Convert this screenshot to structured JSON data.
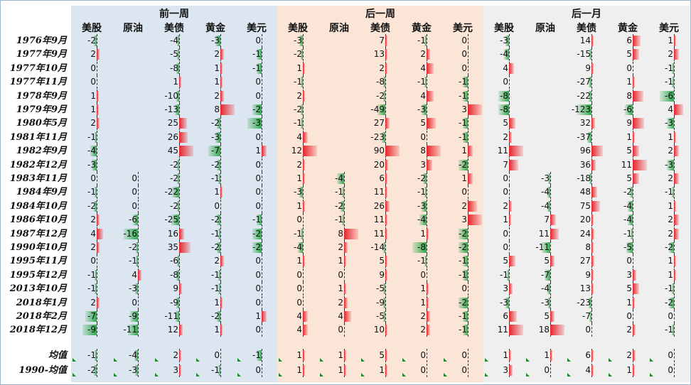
{
  "chart_data": {
    "type": "table",
    "groups": [
      {
        "name": "前一周",
        "bg": "#dce6f0"
      },
      {
        "name": "后一周",
        "bg": "#fbe5d6"
      },
      {
        "name": "后一月",
        "bg": "#efefef"
      }
    ],
    "columns": [
      "美股",
      "原油",
      "美债",
      "黄金",
      "美元"
    ],
    "colors": {
      "positive": "#e8242c",
      "negative": "#2eaa4a"
    },
    "rows": [
      {
        "label": "1976年9月",
        "values": [
          [
            -2,
            null,
            -4,
            -3,
            0
          ],
          [
            -3,
            null,
            7,
            -1,
            0
          ],
          [
            -3,
            null,
            14,
            6,
            1
          ]
        ]
      },
      {
        "label": "1977年9月",
        "values": [
          [
            2,
            null,
            -5,
            2,
            -1
          ],
          [
            -2,
            null,
            13,
            2,
            0
          ],
          [
            -4,
            null,
            -15,
            5,
            2
          ]
        ]
      },
      {
        "label": "1977年10月",
        "values": [
          [
            0,
            null,
            -8,
            1,
            -1
          ],
          [
            1,
            null,
            2,
            4,
            0
          ],
          [
            4,
            null,
            9,
            0,
            -1
          ]
        ]
      },
      {
        "label": "1977年11月",
        "values": [
          [
            0,
            null,
            1,
            1,
            0
          ],
          [
            -1,
            null,
            -8,
            -1,
            -1
          ],
          [
            0,
            null,
            -27,
            1,
            -1
          ]
        ]
      },
      {
        "label": "1978年9月",
        "values": [
          [
            1,
            null,
            -10,
            2,
            0
          ],
          [
            2,
            null,
            -2,
            4,
            -1
          ],
          [
            -8,
            null,
            -22,
            8,
            -6
          ]
        ]
      },
      {
        "label": "1979年9月",
        "values": [
          [
            1,
            null,
            -13,
            8,
            -2
          ],
          [
            -2,
            null,
            -49,
            -3,
            3
          ],
          [
            -8,
            null,
            -123,
            -6,
            4
          ]
        ]
      },
      {
        "label": "1980年5月",
        "values": [
          [
            2,
            null,
            25,
            -2,
            -3
          ],
          [
            -1,
            null,
            27,
            5,
            -1
          ],
          [
            5,
            null,
            32,
            9,
            -3
          ]
        ]
      },
      {
        "label": "1981年11月",
        "values": [
          [
            -1,
            null,
            26,
            -3,
            0
          ],
          [
            4,
            null,
            -23,
            0,
            -1
          ],
          [
            2,
            null,
            -37,
            1,
            1
          ]
        ]
      },
      {
        "label": "1982年9月",
        "values": [
          [
            -4,
            null,
            45,
            -7,
            1
          ],
          [
            12,
            null,
            90,
            8,
            1
          ],
          [
            11,
            null,
            96,
            5,
            2
          ]
        ]
      },
      {
        "label": "1982年12月",
        "values": [
          [
            -3,
            null,
            -2,
            -2,
            0
          ],
          [
            2,
            null,
            20,
            3,
            -2
          ],
          [
            7,
            null,
            36,
            11,
            -3
          ]
        ]
      },
      {
        "label": "1983年11月",
        "values": [
          [
            0,
            0,
            -2,
            -1,
            0
          ],
          [
            1,
            -4,
            6,
            -2,
            1
          ],
          [
            0,
            -3,
            -18,
            5,
            2
          ]
        ]
      },
      {
        "label": "1984年9月",
        "values": [
          [
            -1,
            0,
            -22,
            1,
            0
          ],
          [
            -3,
            -1,
            11,
            -1,
            0
          ],
          [
            0,
            -4,
            48,
            -2,
            -1
          ]
        ]
      },
      {
        "label": "1984年10月",
        "values": [
          [
            -2,
            0,
            -2,
            0,
            0
          ],
          [
            1,
            -2,
            26,
            -3,
            2
          ],
          [
            2,
            -4,
            75,
            -4,
            1
          ]
        ]
      },
      {
        "label": "1986年10月",
        "values": [
          [
            2,
            -6,
            -25,
            -2,
            -1
          ],
          [
            0,
            -1,
            11,
            -4,
            3
          ],
          [
            1,
            7,
            20,
            -4,
            2
          ]
        ]
      },
      {
        "label": "1987年12月",
        "values": [
          [
            4,
            -16,
            16,
            -1,
            -2
          ],
          [
            -1,
            8,
            11,
            1,
            -2
          ],
          [
            0,
            11,
            24,
            -1,
            2
          ]
        ]
      },
      {
        "label": "1990年10月",
        "values": [
          [
            2,
            -2,
            35,
            -2,
            -2
          ],
          [
            -4,
            2,
            -14,
            -8,
            -2
          ],
          [
            0,
            -11,
            8,
            -5,
            -2
          ]
        ]
      },
      {
        "label": "1995年11月",
        "values": [
          [
            0,
            -1,
            -6,
            2,
            0
          ],
          [
            1,
            1,
            5,
            -1,
            -1
          ],
          [
            5,
            5,
            27,
            0,
            1
          ]
        ]
      },
      {
        "label": "1995年12月",
        "values": [
          [
            -1,
            4,
            -8,
            -1,
            0
          ],
          [
            0,
            0,
            9,
            0,
            -1
          ],
          [
            -1,
            -7,
            9,
            3,
            1
          ]
        ]
      },
      {
        "label": "2013年10月",
        "values": [
          [
            -1,
            -3,
            9,
            -1,
            0
          ],
          [
            0,
            1,
            -5,
            1,
            0
          ],
          [
            3,
            -4,
            13,
            5,
            -1
          ]
        ]
      },
      {
        "label": "2018年1月",
        "values": [
          [
            2,
            0,
            -9,
            1,
            0
          ],
          [
            0,
            2,
            -9,
            1,
            -2
          ],
          [
            -3,
            -3,
            -23,
            1,
            -2
          ]
        ]
      },
      {
        "label": "2018年2月",
        "values": [
          [
            -7,
            -9,
            -11,
            -2,
            1
          ],
          [
            4,
            4,
            -5,
            2,
            -1
          ],
          [
            6,
            5,
            -7,
            0,
            0
          ]
        ]
      },
      {
        "label": "2018年12月",
        "values": [
          [
            -9,
            -11,
            12,
            1,
            0
          ],
          [
            4,
            0,
            10,
            2,
            -1
          ],
          [
            11,
            18,
            0,
            2,
            -1
          ]
        ]
      },
      {
        "label": "均值",
        "values": [
          [
            -1,
            -4,
            2,
            0,
            -1
          ],
          [
            1,
            1,
            5,
            0,
            0
          ],
          [
            1,
            1,
            6,
            2,
            0
          ]
        ]
      },
      {
        "label": "1990-均值",
        "values": [
          [
            -2,
            -3,
            3,
            -1,
            0
          ],
          [
            1,
            1,
            1,
            0,
            0
          ],
          [
            3,
            0,
            4,
            1,
            0
          ]
        ]
      }
    ]
  }
}
